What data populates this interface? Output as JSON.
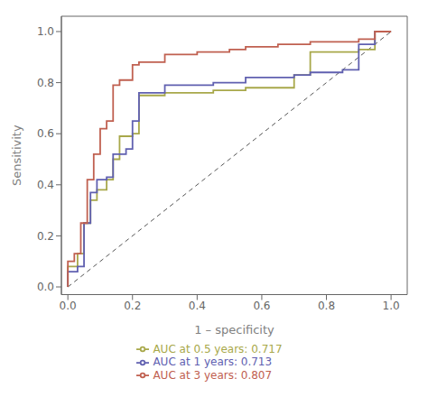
{
  "chart_data": {
    "type": "line",
    "xlabel": "1 – specificity",
    "ylabel": "Sensitivity",
    "xlim": [
      -0.02,
      1.05
    ],
    "ylim": [
      -0.03,
      1.06
    ],
    "xticks": [
      {
        "value": 0,
        "label": "0.0"
      },
      0.2,
      0.4,
      0.6,
      0.8,
      {
        "value": 1,
        "label": "1.0"
      }
    ],
    "yticks": [
      {
        "value": 0,
        "label": "0.0"
      },
      0.2,
      0.4,
      0.6,
      0.8,
      {
        "value": 1,
        "label": "1.0"
      }
    ],
    "grid": false,
    "legend": "bottom",
    "series": [
      {
        "type": "line",
        "line_style": "dashed",
        "color": "#555555",
        "x": [
          0,
          1
        ],
        "values": [
          0,
          1
        ]
      },
      {
        "name": "AUC at 0.5 years: 0.717",
        "type": "step",
        "line_style": "solid",
        "color": "#a8a84a",
        "x": [
          0.0,
          0.0,
          0.03,
          0.03,
          0.05,
          0.05,
          0.07,
          0.07,
          0.09,
          0.09,
          0.12,
          0.12,
          0.14,
          0.14,
          0.16,
          0.16,
          0.2,
          0.2,
          0.22,
          0.22,
          0.3,
          0.3,
          0.45,
          0.45,
          0.55,
          0.55,
          0.7,
          0.7,
          0.75,
          0.75,
          0.9,
          0.9,
          0.95,
          0.95,
          1.0
        ],
        "values": [
          0.0,
          0.08,
          0.08,
          0.13,
          0.13,
          0.25,
          0.25,
          0.34,
          0.34,
          0.38,
          0.38,
          0.42,
          0.42,
          0.5,
          0.5,
          0.59,
          0.59,
          0.6,
          0.6,
          0.75,
          0.75,
          0.76,
          0.76,
          0.77,
          0.77,
          0.78,
          0.78,
          0.83,
          0.83,
          0.92,
          0.92,
          0.93,
          0.93,
          1.0,
          1.0
        ]
      },
      {
        "name": "AUC at 1 years: 0.713",
        "type": "step",
        "line_style": "solid",
        "color": "#6060b0",
        "x": [
          0.0,
          0.0,
          0.03,
          0.03,
          0.05,
          0.05,
          0.07,
          0.07,
          0.09,
          0.09,
          0.12,
          0.12,
          0.14,
          0.14,
          0.18,
          0.18,
          0.2,
          0.2,
          0.22,
          0.22,
          0.3,
          0.3,
          0.45,
          0.45,
          0.55,
          0.55,
          0.7,
          0.7,
          0.75,
          0.75,
          0.85,
          0.85,
          0.9,
          0.9,
          0.95,
          0.95,
          1.0
        ],
        "values": [
          0.0,
          0.06,
          0.06,
          0.08,
          0.08,
          0.25,
          0.25,
          0.37,
          0.37,
          0.42,
          0.42,
          0.43,
          0.43,
          0.52,
          0.52,
          0.54,
          0.54,
          0.65,
          0.65,
          0.76,
          0.76,
          0.79,
          0.79,
          0.8,
          0.8,
          0.82,
          0.82,
          0.83,
          0.83,
          0.84,
          0.84,
          0.85,
          0.85,
          0.95,
          0.95,
          1.0,
          1.0
        ]
      },
      {
        "name": "AUC at 3 years: 0.807",
        "type": "step",
        "line_style": "solid",
        "color": "#c06050",
        "x": [
          0.0,
          0.0,
          0.02,
          0.02,
          0.04,
          0.04,
          0.06,
          0.06,
          0.08,
          0.08,
          0.1,
          0.1,
          0.12,
          0.12,
          0.14,
          0.14,
          0.16,
          0.16,
          0.2,
          0.2,
          0.22,
          0.22,
          0.3,
          0.3,
          0.4,
          0.4,
          0.5,
          0.5,
          0.55,
          0.55,
          0.65,
          0.65,
          0.7,
          0.7,
          0.75,
          0.75,
          0.9,
          0.9,
          0.95,
          0.95,
          1.0
        ],
        "values": [
          0.0,
          0.1,
          0.1,
          0.13,
          0.13,
          0.25,
          0.25,
          0.42,
          0.42,
          0.52,
          0.52,
          0.62,
          0.62,
          0.65,
          0.65,
          0.79,
          0.79,
          0.81,
          0.81,
          0.87,
          0.87,
          0.88,
          0.88,
          0.91,
          0.91,
          0.92,
          0.92,
          0.93,
          0.93,
          0.94,
          0.94,
          0.95,
          0.95,
          0.95,
          0.95,
          0.96,
          0.96,
          0.97,
          0.97,
          1.0,
          1.0
        ]
      }
    ]
  }
}
